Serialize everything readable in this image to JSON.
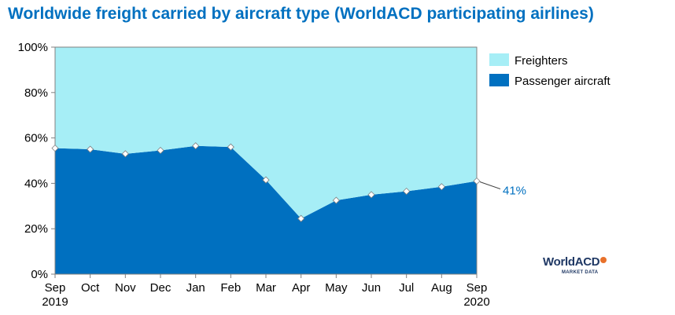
{
  "chart_data": {
    "type": "area",
    "title": "Worldwide freight carried by aircraft type (WorldACD participating airlines)",
    "categories": [
      "Sep",
      "Oct",
      "Nov",
      "Dec",
      "Jan",
      "Feb",
      "Mar",
      "Apr",
      "May",
      "Jun",
      "Jul",
      "Aug",
      "Sep"
    ],
    "category_sublabels": [
      "2019",
      "",
      "",
      "",
      "",
      "",
      "",
      "",
      "",
      "",
      "",
      "",
      "2020"
    ],
    "stacked": true,
    "series": [
      {
        "name": "Passenger aircraft",
        "color": "#0070c0",
        "values": [
          55.5,
          55,
          53,
          54.5,
          56.5,
          56,
          41.5,
          24.5,
          32.5,
          35,
          36.5,
          38.5,
          41
        ]
      },
      {
        "name": "Freighters",
        "color": "#a6eef6",
        "values": [
          44.5,
          45,
          47,
          45.5,
          43.5,
          44,
          58.5,
          75.5,
          67.5,
          65,
          63.5,
          61.5,
          59
        ]
      }
    ],
    "ylim": [
      0,
      100
    ],
    "yticks": [
      "0%",
      "20%",
      "40%",
      "60%",
      "80%",
      "100%"
    ],
    "annotation": {
      "text": "41%",
      "series": "Passenger aircraft",
      "index": 12
    },
    "legend": "top-right",
    "grid": false
  },
  "logo": {
    "name": "WorldACD",
    "tagline": "MARKET DATA",
    "dot_color": "#e8712b"
  }
}
